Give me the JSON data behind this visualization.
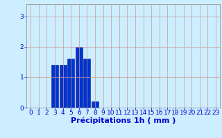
{
  "xlabel": "Précipitations 1h ( mm )",
  "bar_data": {
    "x": [
      3,
      4,
      5,
      6,
      7,
      8
    ],
    "heights": [
      1.4,
      1.4,
      1.6,
      2.0,
      1.6,
      0.2
    ]
  },
  "xlim": [
    -0.5,
    23.5
  ],
  "ylim": [
    0,
    3.4
  ],
  "yticks": [
    0,
    1,
    2,
    3
  ],
  "xticks": [
    0,
    1,
    2,
    3,
    4,
    5,
    6,
    7,
    8,
    9,
    10,
    11,
    12,
    13,
    14,
    15,
    16,
    17,
    18,
    19,
    20,
    21,
    22,
    23
  ],
  "bar_color": "#0033cc",
  "bar_edge_color": "#001a99",
  "background_color": "#cceeff",
  "grid_color": "#cc9999",
  "xlabel_color": "#0000cc",
  "tick_color": "#0000cc",
  "tick_fontsize": 6.5,
  "xlabel_fontsize": 8,
  "bar_width": 0.85
}
